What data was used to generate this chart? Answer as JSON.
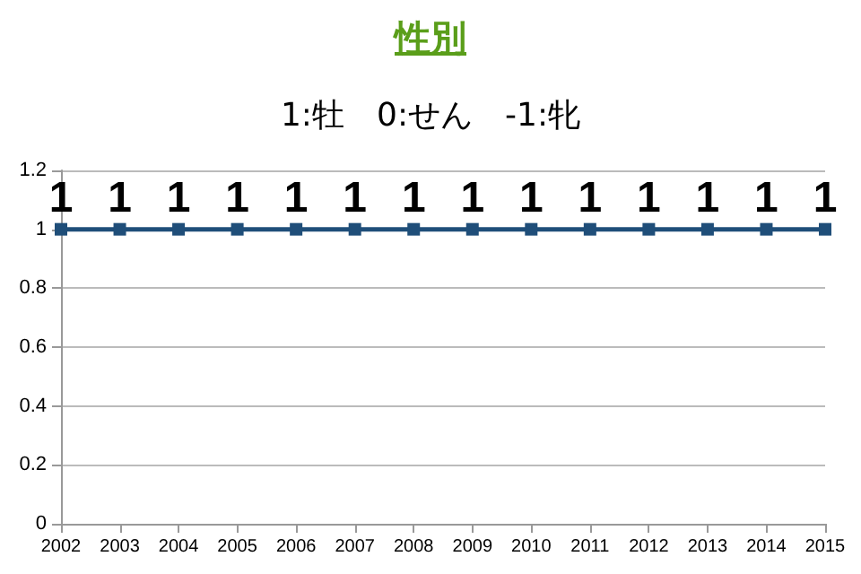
{
  "chart_data": {
    "type": "line",
    "title": "性別",
    "subtitle": "1:牡　0:せん　-1:牝",
    "categories": [
      "2002",
      "2003",
      "2004",
      "2005",
      "2006",
      "2007",
      "2008",
      "2009",
      "2010",
      "2011",
      "2012",
      "2013",
      "2014",
      "2015"
    ],
    "series": [
      {
        "color": "#1f4e79",
        "values": [
          1,
          1,
          1,
          1,
          1,
          1,
          1,
          1,
          1,
          1,
          1,
          1,
          1,
          1
        ]
      }
    ],
    "ylim": [
      0,
      1.2
    ],
    "yticks": [
      0,
      0.2,
      0.4,
      0.6,
      0.8,
      1,
      1.2
    ],
    "grid": "y",
    "marker": "square",
    "line_style": "solid",
    "data_labels": true
  }
}
